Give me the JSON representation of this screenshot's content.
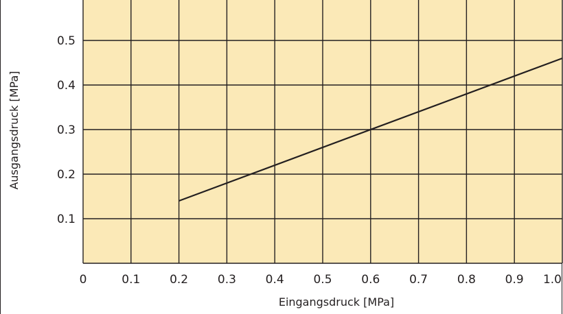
{
  "chart_data": {
    "type": "line",
    "title": "",
    "xlabel": "Eingangsdruck  [MPa]",
    "ylabel": "Ausgangsdruck  [MPa]",
    "xlim": [
      0,
      1.0
    ],
    "ylim": [
      0,
      0.5
    ],
    "x_ticks": [
      "0",
      "0.1",
      "0.2",
      "0.3",
      "0.4",
      "0.5",
      "0.6",
      "0.7",
      "0.8",
      "0.9",
      "1.0"
    ],
    "y_ticks": [
      "0.1",
      "0.2",
      "0.3",
      "0.4",
      "0.5"
    ],
    "grid": true,
    "series": [
      {
        "x": [
          0.2,
          1.0
        ],
        "y": [
          0.14,
          0.46
        ]
      }
    ]
  },
  "colors": {
    "plot_background": "#fbe9b7",
    "line": "#231f20",
    "grid": "#231f20"
  }
}
